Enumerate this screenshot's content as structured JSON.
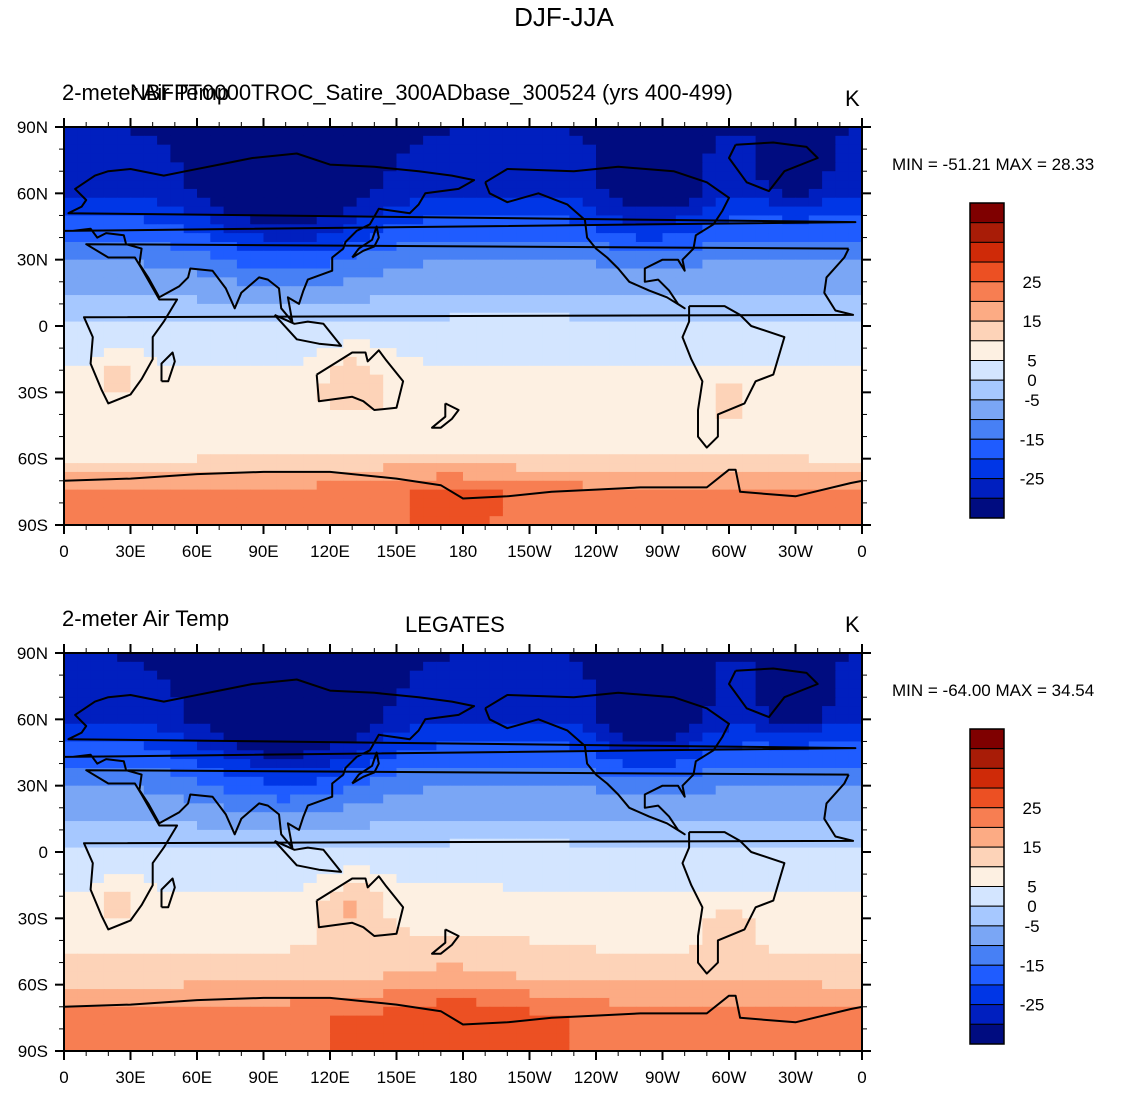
{
  "main_title": "DJF-JJA",
  "colorbar": {
    "colors": [
      "#000c80",
      "#001fbf",
      "#0036e6",
      "#1f5cff",
      "#4780f5",
      "#7aa6f5",
      "#a6c8ff",
      "#d3e5ff",
      "#fdf0e2",
      "#fdd3b8",
      "#fcab84",
      "#f77e52",
      "#ec5023",
      "#cf2a08",
      "#a81c07",
      "#7f0000"
    ],
    "labels": [
      "-25",
      "-15",
      "-5",
      "0",
      "5",
      "15",
      "25"
    ]
  },
  "chart_data": [
    {
      "type": "heatmap",
      "variable": "2-meter Air Temp",
      "case": "NBFPT0000TROC_Satire_300ADbase_300524 (yrs 400-499)",
      "units": "K",
      "min": "-51.21",
      "max": "28.33",
      "stats_text": "MIN = -51.21 MAX =  28.33",
      "xticks": [
        "0",
        "30E",
        "60E",
        "90E",
        "120E",
        "150E",
        "180",
        "150W",
        "120W",
        "90W",
        "60W",
        "30W",
        "0"
      ],
      "yticks": [
        "90N",
        "60N",
        "30N",
        "0",
        "30S",
        "60S",
        "90S"
      ],
      "lat_band_means": [
        {
          "lat": 90,
          "value": -30
        },
        {
          "lat": 60,
          "value": -25
        },
        {
          "lat": 30,
          "value": -10
        },
        {
          "lat": 10,
          "value": -3
        },
        {
          "lat": 0,
          "value": 2
        },
        {
          "lat": -30,
          "value": 7
        },
        {
          "lat": -55,
          "value": 6
        },
        {
          "lat": -75,
          "value": 22
        }
      ]
    },
    {
      "type": "heatmap",
      "variable": "2-meter Air Temp",
      "case": "LEGATES",
      "units": "K",
      "min": "-64.00",
      "max": "34.54",
      "stats_text": "MIN = -64.00 MAX =  34.54",
      "xticks": [
        "0",
        "30E",
        "60E",
        "90E",
        "120E",
        "150E",
        "180",
        "150W",
        "120W",
        "90W",
        "60W",
        "30W",
        "0"
      ],
      "yticks": [
        "90N",
        "60N",
        "30N",
        "0",
        "30S",
        "60S",
        "90S"
      ],
      "lat_band_means": [
        {
          "lat": 90,
          "value": -30
        },
        {
          "lat": 60,
          "value": -25
        },
        {
          "lat": 30,
          "value": -10
        },
        {
          "lat": 10,
          "value": -3
        },
        {
          "lat": 0,
          "value": 2
        },
        {
          "lat": -30,
          "value": 7
        },
        {
          "lat": -55,
          "value": 12
        },
        {
          "lat": -75,
          "value": 24
        }
      ]
    }
  ]
}
